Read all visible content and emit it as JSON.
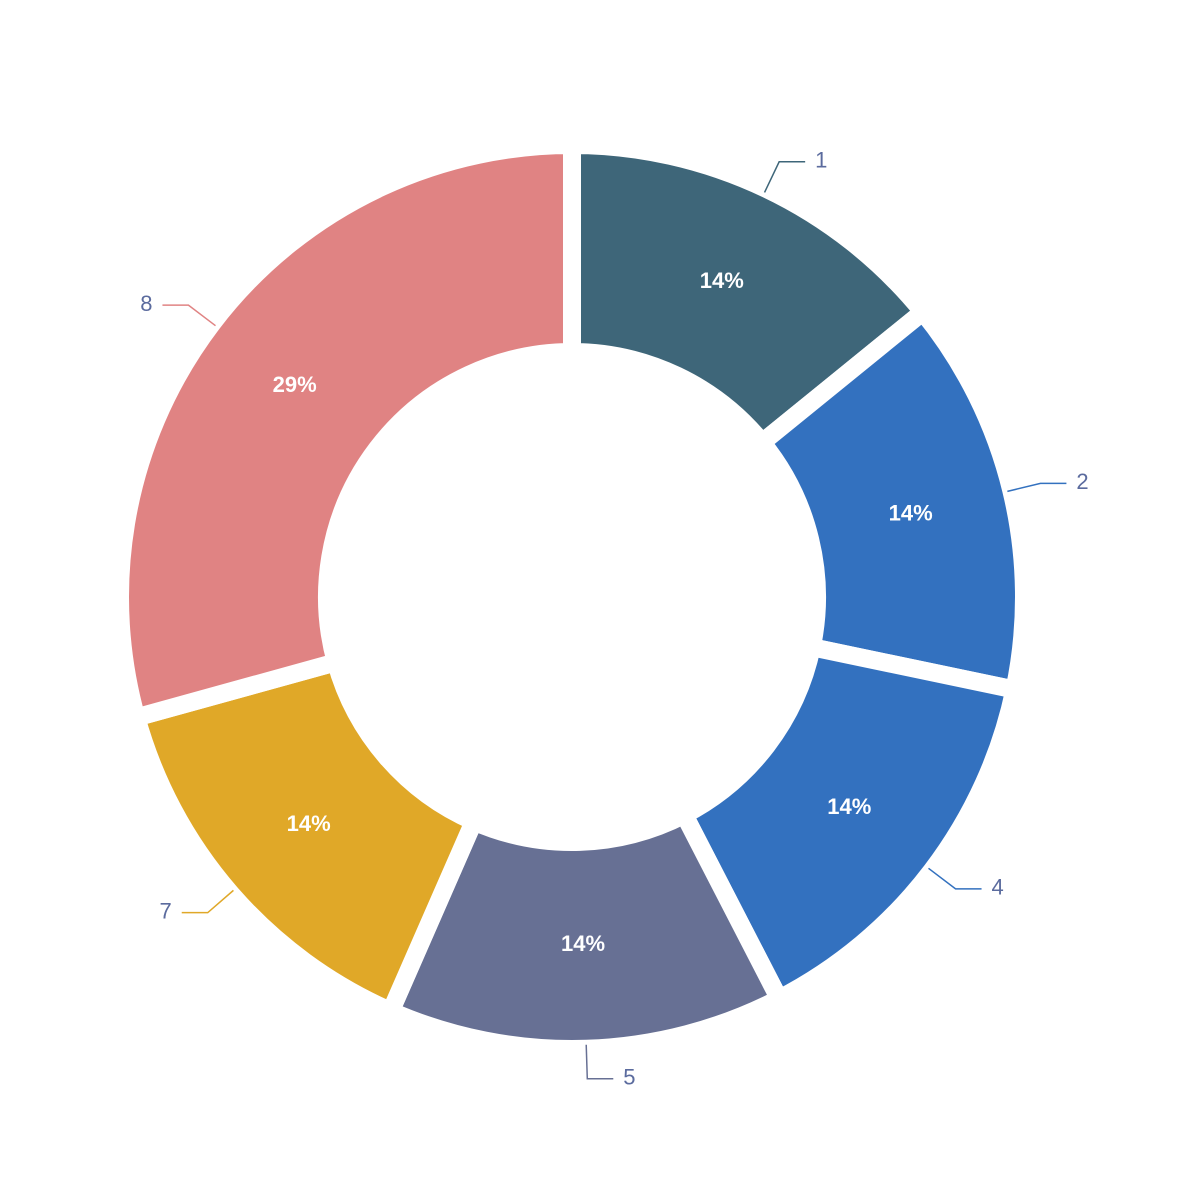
{
  "chart_data": {
    "type": "pie",
    "categories": [
      "1",
      "2",
      "4",
      "5",
      "7",
      "8"
    ],
    "values": [
      14,
      14,
      14,
      14,
      14,
      29
    ],
    "value_labels": [
      "14%",
      "14%",
      "14%",
      "14%",
      "14%",
      "29%"
    ],
    "colors": [
      "#3e6679",
      "#3371bf",
      "#3371bf",
      "#677094",
      "#e0a828",
      "#e08383"
    ]
  }
}
